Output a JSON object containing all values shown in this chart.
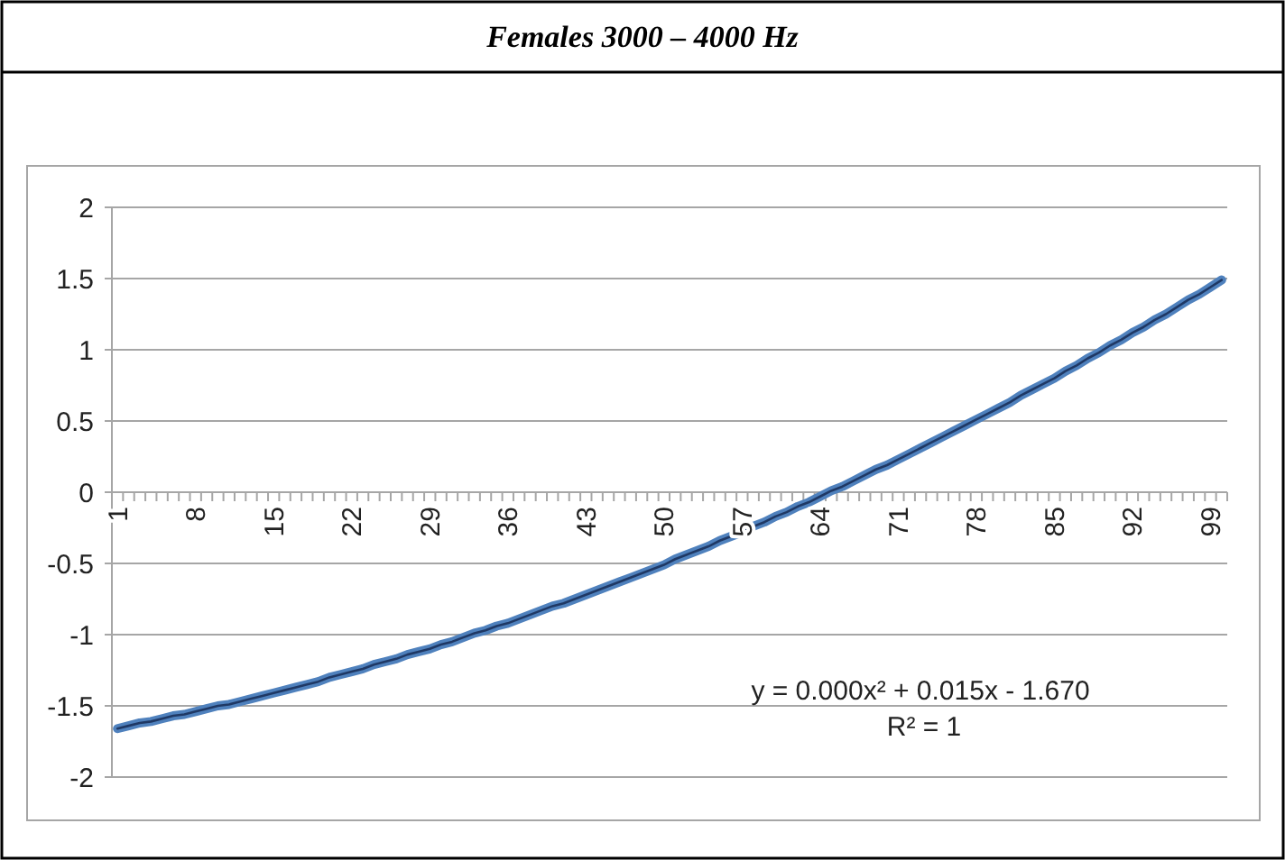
{
  "chart_data": {
    "type": "line",
    "title": "Females 3000 – 4000 Hz",
    "categories": [
      "1",
      null,
      null,
      null,
      null,
      null,
      null,
      "8",
      null,
      null,
      null,
      null,
      null,
      null,
      "15",
      null,
      null,
      null,
      null,
      null,
      null,
      "22",
      null,
      null,
      null,
      null,
      null,
      null,
      "29",
      null,
      null,
      null,
      null,
      null,
      null,
      "36",
      null,
      null,
      null,
      null,
      null,
      null,
      "43",
      null,
      null,
      null,
      null,
      null,
      null,
      "50",
      null,
      null,
      null,
      null,
      null,
      null,
      "57",
      null,
      null,
      null,
      null,
      null,
      null,
      "64",
      null,
      null,
      null,
      null,
      null,
      null,
      "71",
      null,
      null,
      null,
      null,
      null,
      null,
      "78",
      null,
      null,
      null,
      null,
      null,
      null,
      "85",
      null,
      null,
      null,
      null,
      null,
      null,
      "92",
      null,
      null,
      null,
      null,
      null,
      null,
      "99",
      null
    ],
    "series": [
      {
        "color": "#4f81bd",
        "values": [
          -1.66,
          -1.64,
          -1.62,
          -1.61,
          -1.59,
          -1.57,
          -1.56,
          -1.54,
          -1.52,
          -1.5,
          -1.49,
          -1.47,
          -1.45,
          -1.43,
          -1.41,
          -1.39,
          -1.37,
          -1.35,
          -1.33,
          -1.3,
          -1.28,
          -1.26,
          -1.24,
          -1.21,
          -1.19,
          -1.17,
          -1.14,
          -1.12,
          -1.1,
          -1.07,
          -1.05,
          -1.02,
          -0.99,
          -0.97,
          -0.94,
          -0.92,
          -0.89,
          -0.86,
          -0.83,
          -0.8,
          -0.78,
          -0.75,
          -0.72,
          -0.69,
          -0.66,
          -0.63,
          -0.6,
          -0.57,
          -0.54,
          -0.51,
          -0.47,
          -0.44,
          -0.41,
          -0.38,
          -0.34,
          -0.31,
          -0.28,
          -0.24,
          -0.21,
          -0.17,
          -0.14,
          -0.1,
          -0.07,
          -0.03,
          0.01,
          0.04,
          0.08,
          0.12,
          0.16,
          0.19,
          0.23,
          0.27,
          0.31,
          0.35,
          0.39,
          0.43,
          0.47,
          0.51,
          0.55,
          0.59,
          0.63,
          0.68,
          0.72,
          0.76,
          0.8,
          0.85,
          0.89,
          0.94,
          0.98,
          1.03,
          1.07,
          1.12,
          1.16,
          1.21,
          1.25,
          1.3,
          1.35,
          1.39,
          1.44,
          1.49
        ]
      },
      {
        "type": "line",
        "color": "#1f3864",
        "values": [
          -1.66,
          -1.64,
          -1.62,
          -1.61,
          -1.59,
          -1.57,
          -1.56,
          -1.54,
          -1.52,
          -1.5,
          -1.49,
          -1.47,
          -1.45,
          -1.43,
          -1.41,
          -1.39,
          -1.37,
          -1.35,
          -1.33,
          -1.3,
          -1.28,
          -1.26,
          -1.24,
          -1.21,
          -1.19,
          -1.17,
          -1.14,
          -1.12,
          -1.1,
          -1.07,
          -1.05,
          -1.02,
          -0.99,
          -0.97,
          -0.94,
          -0.92,
          -0.89,
          -0.86,
          -0.83,
          -0.8,
          -0.78,
          -0.75,
          -0.72,
          -0.69,
          -0.66,
          -0.63,
          -0.6,
          -0.57,
          -0.54,
          -0.51,
          -0.47,
          -0.44,
          -0.41,
          -0.38,
          -0.34,
          -0.31,
          -0.28,
          -0.24,
          -0.21,
          -0.17,
          -0.14,
          -0.1,
          -0.07,
          -0.03,
          0.01,
          0.04,
          0.08,
          0.12,
          0.16,
          0.19,
          0.23,
          0.27,
          0.31,
          0.35,
          0.39,
          0.43,
          0.47,
          0.51,
          0.55,
          0.59,
          0.63,
          0.68,
          0.72,
          0.76,
          0.8,
          0.85,
          0.89,
          0.94,
          0.98,
          1.03,
          1.07,
          1.12,
          1.16,
          1.21,
          1.25,
          1.3,
          1.35,
          1.39,
          1.44,
          1.49
        ]
      }
    ],
    "ylim": [
      -2,
      2
    ],
    "yticks": [
      -2,
      -1.5,
      -1,
      -0.5,
      0,
      0.5,
      1,
      1.5,
      2
    ],
    "grid": "y",
    "annotations": [
      "y = 0.000x² + 0.015x - 1.670",
      "R² = 1"
    ]
  }
}
